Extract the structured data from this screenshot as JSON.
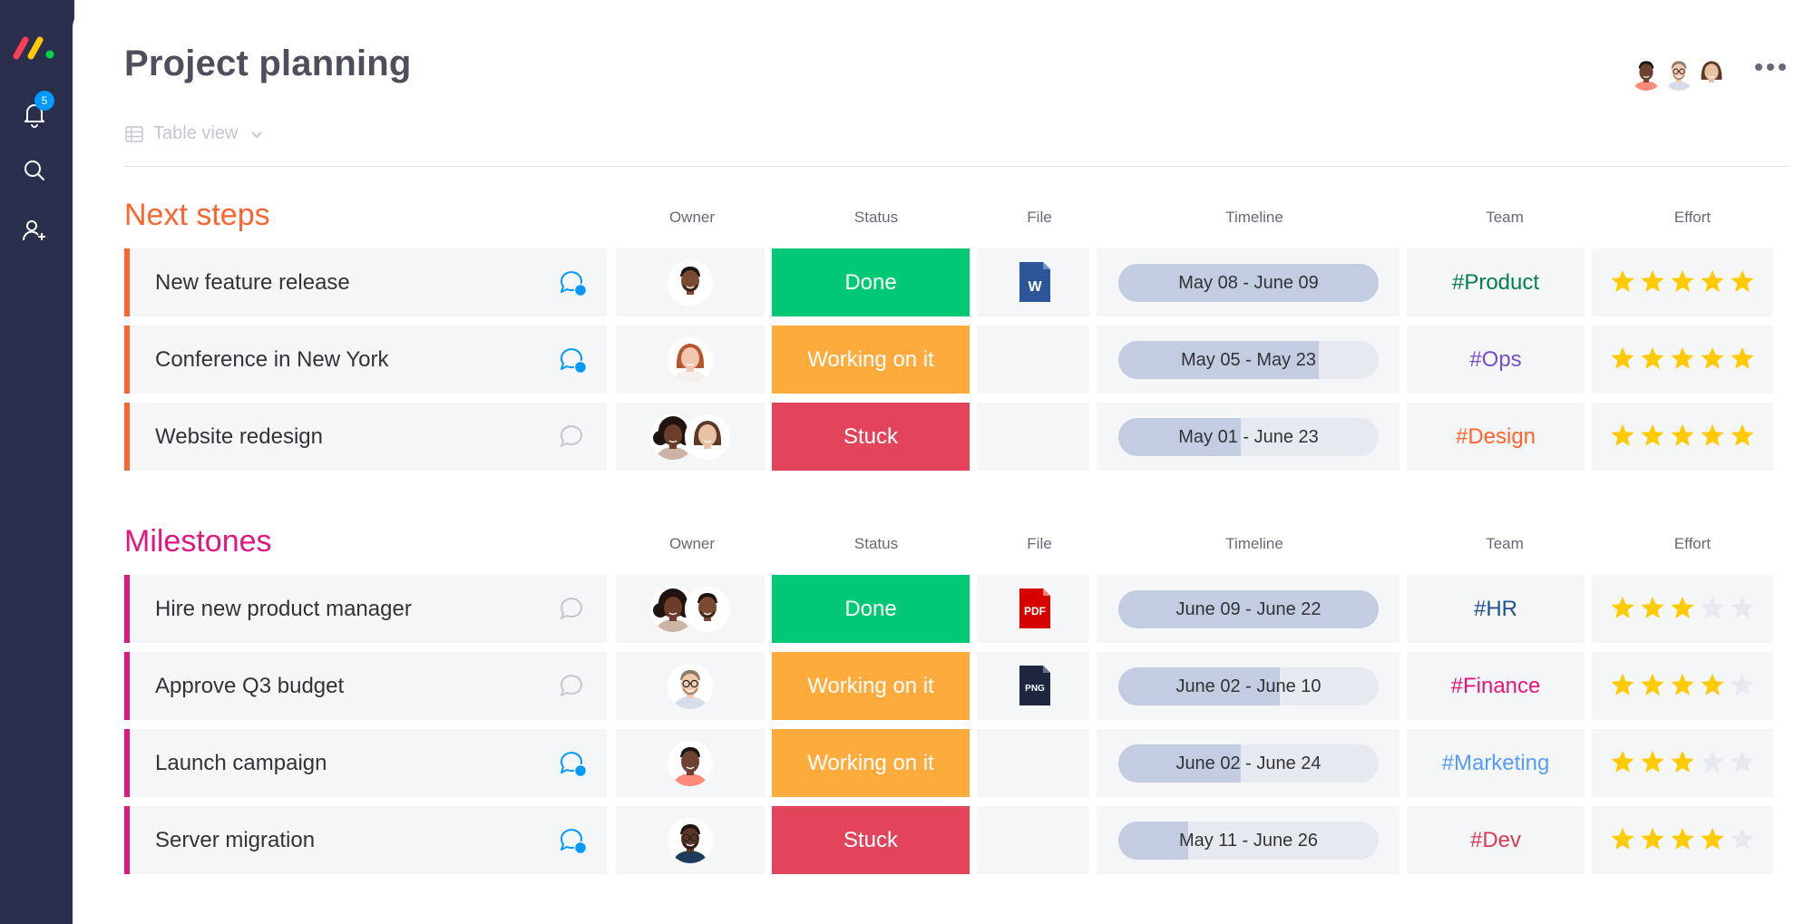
{
  "app": {
    "notifications_count": "5"
  },
  "header": {
    "title": "Project planning",
    "view_label": "Table view"
  },
  "columns": {
    "owner": "Owner",
    "status": "Status",
    "file": "File",
    "timeline": "Timeline",
    "team": "Team",
    "effort": "Effort"
  },
  "groups": [
    {
      "title": "Next steps",
      "color": "#ff642e",
      "rows": [
        {
          "name": "New feature release",
          "chat": "active",
          "owners": [
            "man-dark-beard"
          ],
          "status": "Done",
          "status_color": "#00c875",
          "file": "word",
          "timeline": "May 08 - June 09",
          "timeline_progress": 1.0,
          "team": "#Product",
          "team_color": "#037f4c",
          "effort": 5
        },
        {
          "name": "Conference in New York",
          "chat": "active",
          "owners": [
            "woman-red-hair"
          ],
          "status": "Working on it",
          "status_color": "#fdab3d",
          "file": "",
          "timeline": "May 05 - May 23",
          "timeline_progress": 0.77,
          "team": "#Ops",
          "team_color": "#784bd1",
          "effort": 5
        },
        {
          "name": "Website redesign",
          "chat": "inactive",
          "owners": [
            "woman-curly",
            "woman-smile"
          ],
          "status": "Stuck",
          "status_color": "#e2445c",
          "file": "",
          "timeline": "May 01 - June 23",
          "timeline_progress": 0.47,
          "team": "#Design",
          "team_color": "#ff642e",
          "effort": 5
        }
      ]
    },
    {
      "title": "Milestones",
      "color": "#e2177d",
      "rows": [
        {
          "name": "Hire new product manager",
          "chat": "inactive",
          "owners": [
            "woman-curly",
            "man-dark-beard"
          ],
          "status": "Done",
          "status_color": "#00c875",
          "file": "pdf",
          "timeline": "June 09 - June 22",
          "timeline_progress": 1.0,
          "team": "#HR",
          "team_color": "#225091",
          "effort": 3
        },
        {
          "name": "Approve Q3 budget",
          "chat": "inactive",
          "owners": [
            "man-glasses"
          ],
          "status": "Working on it",
          "status_color": "#fdab3d",
          "file": "png",
          "timeline": "June 02 - June 10",
          "timeline_progress": 0.62,
          "team": "#Finance",
          "team_color": "#e2177d",
          "effort": 4
        },
        {
          "name": "Launch campaign",
          "chat": "active",
          "owners": [
            "man-young"
          ],
          "status": "Working on it",
          "status_color": "#fdab3d",
          "file": "",
          "timeline": "June 02  - June 24",
          "timeline_progress": 0.47,
          "team": "#Marketing",
          "team_color": "#579bfc",
          "effort": 3
        },
        {
          "name": "Server migration",
          "chat": "active",
          "owners": [
            "man-glasses-dark"
          ],
          "status": "Stuck",
          "status_color": "#e2445c",
          "file": "",
          "timeline": "May 11 - June 26",
          "timeline_progress": 0.27,
          "team": "#Dev",
          "team_color": "#d83a52",
          "effort": 4
        }
      ]
    }
  ],
  "icons": {
    "logo": "monday-logo",
    "notifications": "bell-icon",
    "search": "search-icon",
    "invite": "add-user-icon",
    "more": "more-dots-icon"
  },
  "colors": {
    "sidebar": "#292f4c",
    "star_on": "#ffcb00",
    "star_off": "#e6e9ef",
    "chat_active": "#009aff"
  }
}
